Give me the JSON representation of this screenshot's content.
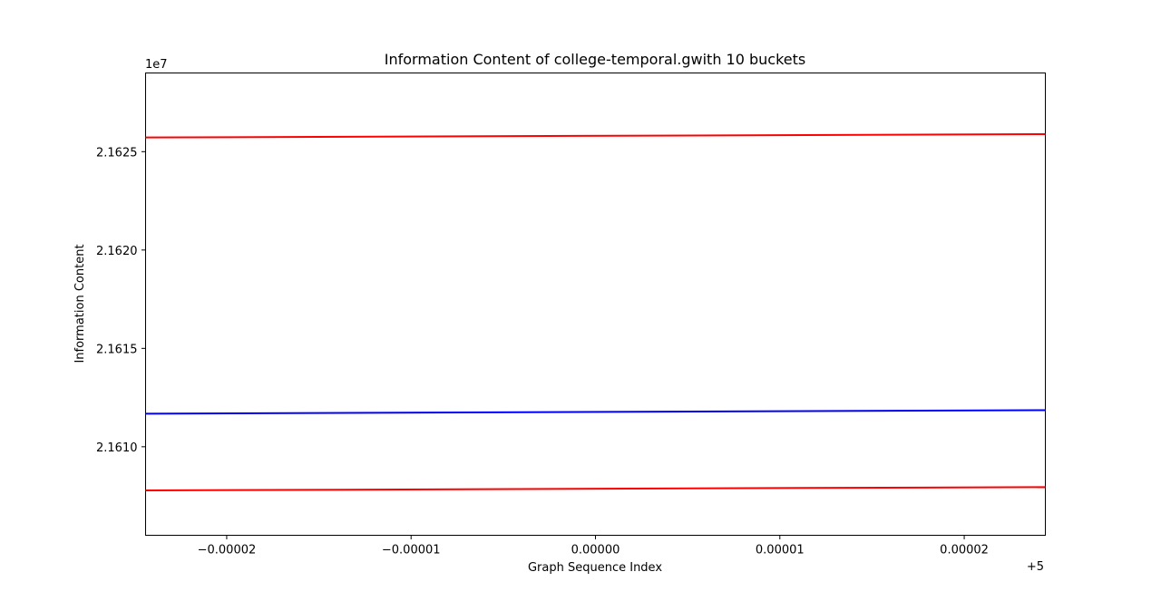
{
  "chart_data": {
    "type": "line",
    "title": "Information Content of college-temporal.gwith 10 buckets",
    "xlabel": "Graph Sequence Index",
    "ylabel": "Information Content",
    "x_offset_label": "+5",
    "y_scale_label": "1e7",
    "xlim": [
      4.9999756,
      5.0000244
    ],
    "ylim": [
      21605500,
      21629000
    ],
    "x_ticks": [
      {
        "value": 4.99998,
        "label": "−0.00002"
      },
      {
        "value": 4.99999,
        "label": "−0.00001"
      },
      {
        "value": 5.0,
        "label": "0.00000"
      },
      {
        "value": 5.00001,
        "label": "0.00001"
      },
      {
        "value": 5.00002,
        "label": "0.00002"
      }
    ],
    "y_ticks": [
      {
        "value": 21610000,
        "label": "2.1610"
      },
      {
        "value": 21615000,
        "label": "2.1615"
      },
      {
        "value": 21620000,
        "label": "2.1620"
      },
      {
        "value": 21625000,
        "label": "2.1625"
      }
    ],
    "grid": false,
    "series": [
      {
        "color": "#ff0000",
        "x": [
          4.9999756,
          5.0000244
        ],
        "y": [
          21625720,
          21625890
        ]
      },
      {
        "color": "#0000ff",
        "x": [
          4.9999756,
          5.0000244
        ],
        "y": [
          21611680,
          21611860
        ]
      },
      {
        "color": "#ff0000",
        "x": [
          4.9999756,
          5.0000244
        ],
        "y": [
          21607780,
          21607950
        ]
      }
    ]
  }
}
